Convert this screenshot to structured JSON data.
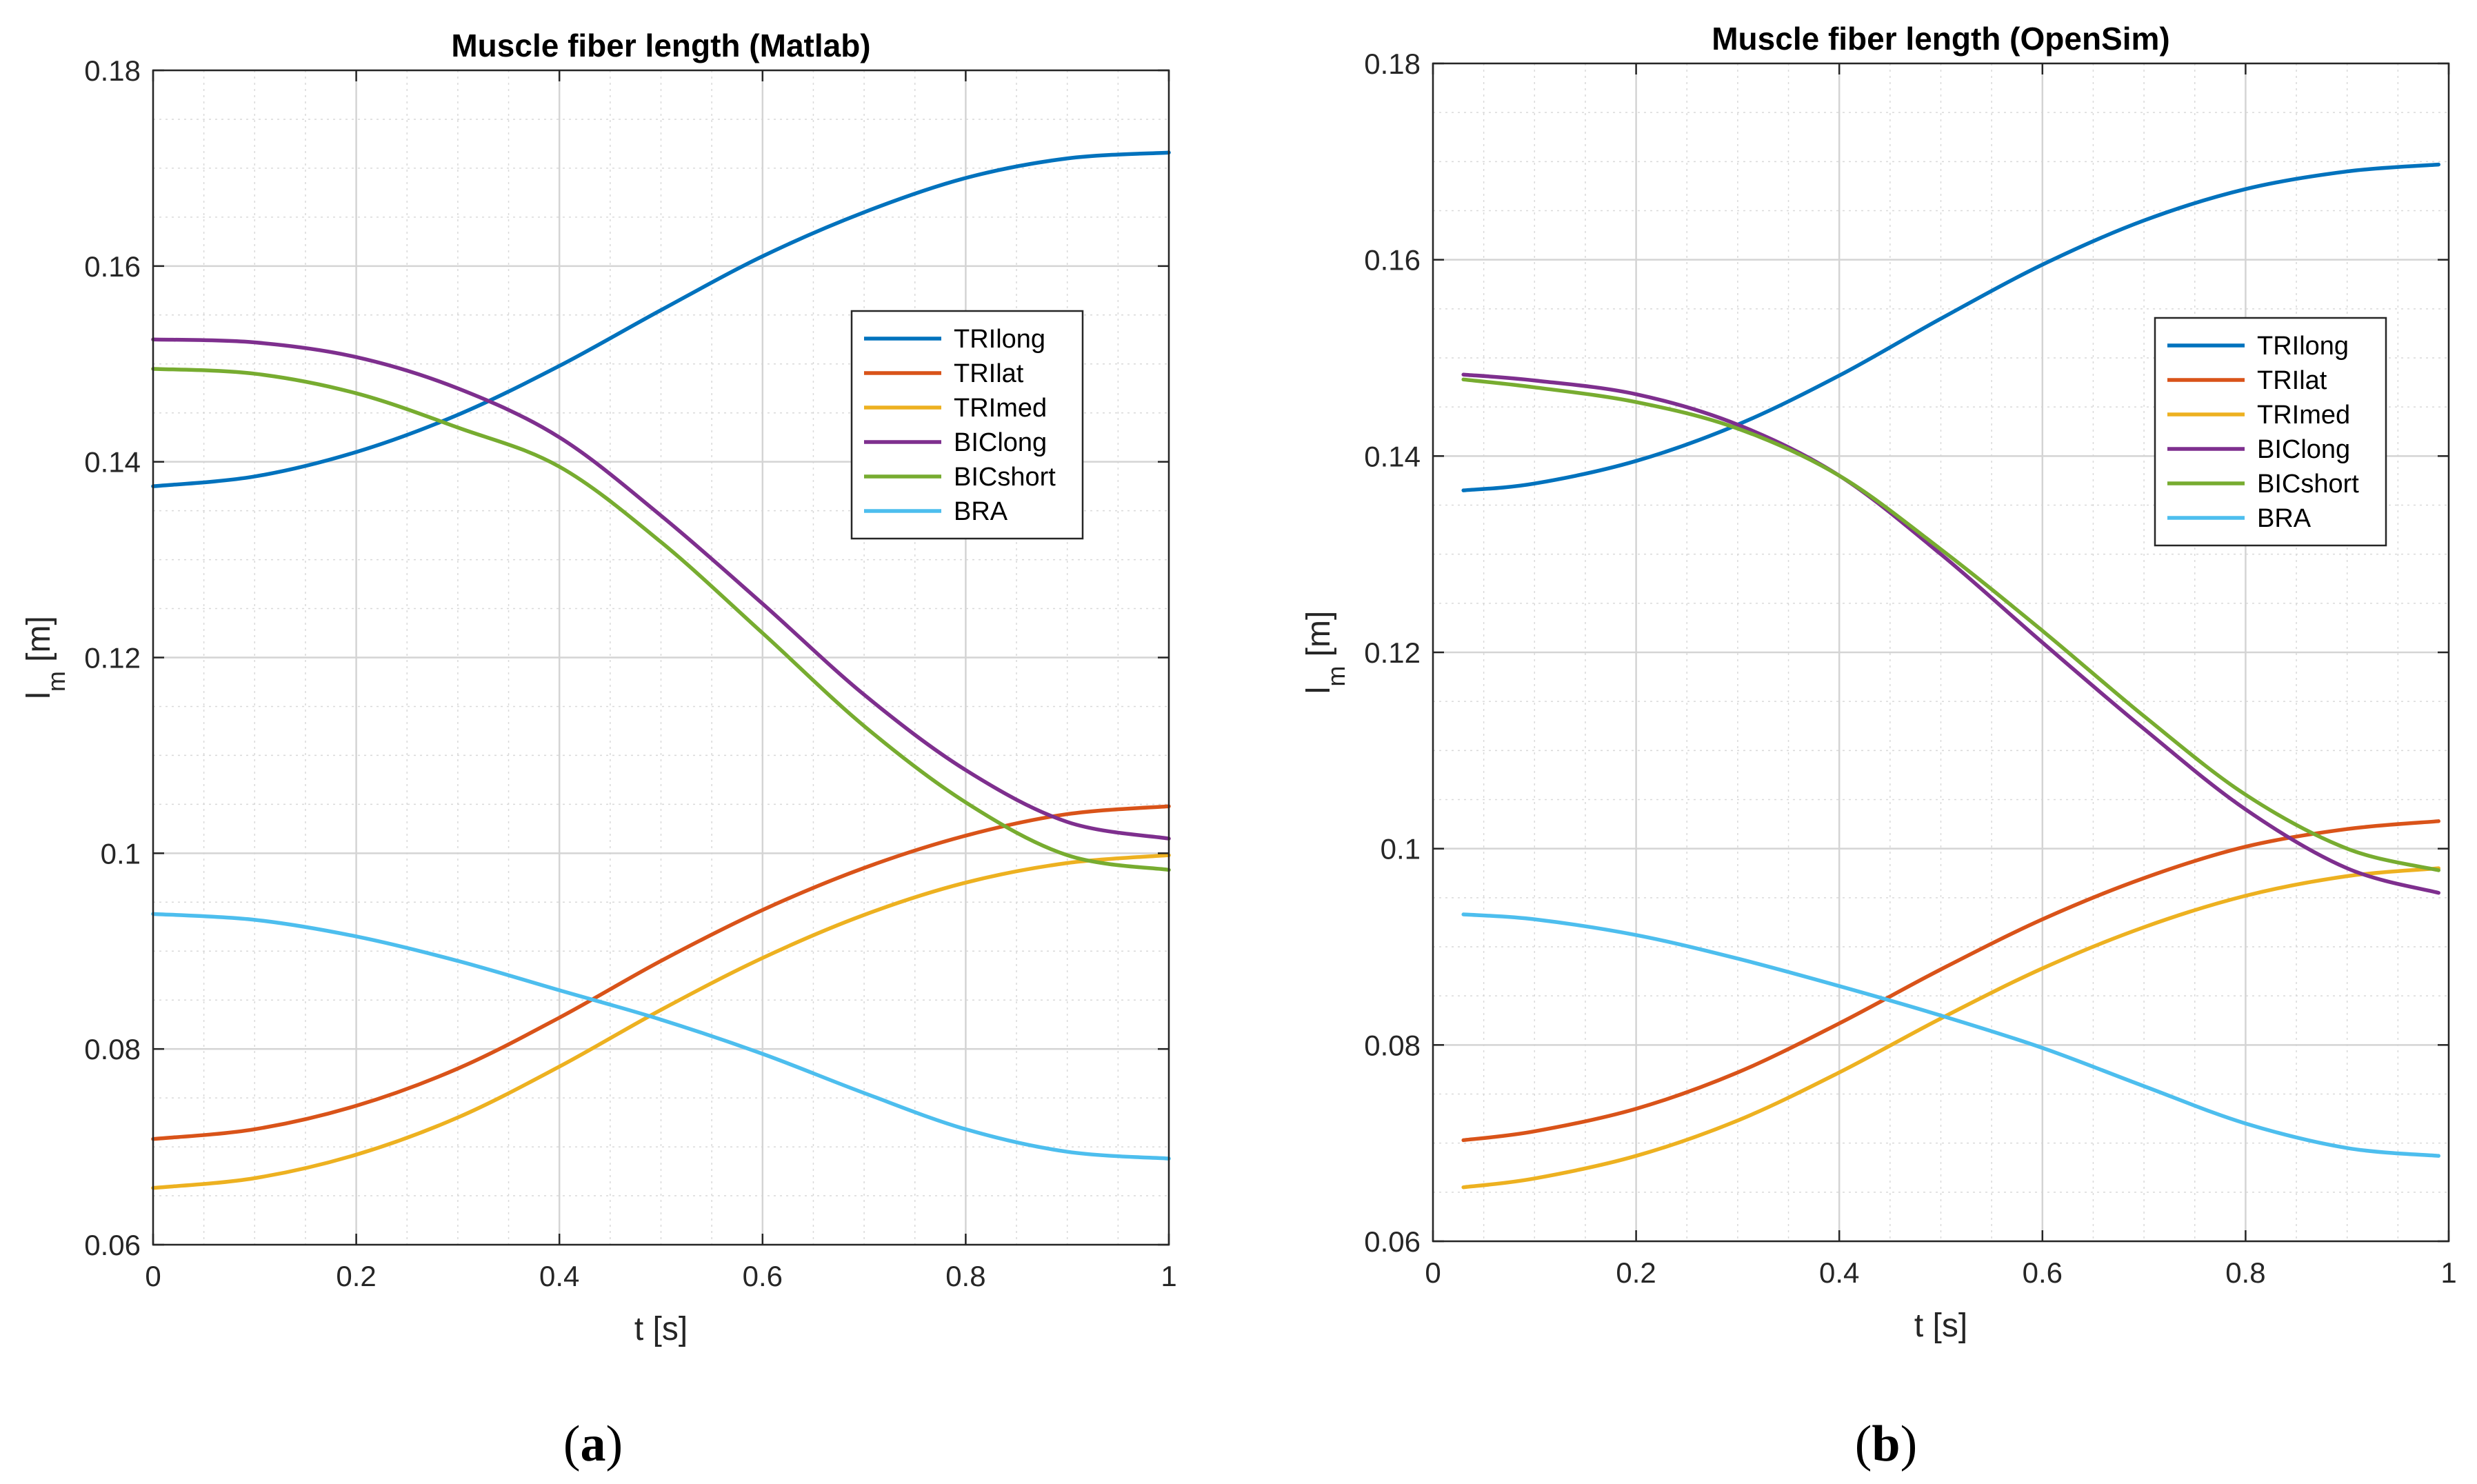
{
  "chart_data": [
    {
      "type": "line",
      "title": "Muscle fiber length (Matlab)",
      "xlabel": "t [s]",
      "ylabel_main": "l",
      "ylabel_sub": "m",
      "ylabel_unit": " [m]",
      "caption_open": "(",
      "caption_letter": "a",
      "caption_close": ")",
      "xlim": [
        0,
        1
      ],
      "ylim": [
        0.06,
        0.18
      ],
      "xticks": [
        0,
        0.2,
        0.4,
        0.6,
        0.8,
        1
      ],
      "xtick_labels": [
        "0",
        "0.2",
        "0.4",
        "0.6",
        "0.8",
        "1"
      ],
      "yticks": [
        0.06,
        0.08,
        0.1,
        0.12,
        0.14,
        0.16,
        0.18
      ],
      "ytick_labels": [
        "0.06",
        "0.08",
        "0.1",
        "0.12",
        "0.14",
        "0.16",
        "0.18"
      ],
      "grid": true,
      "legend_position": "upper-right",
      "series": [
        {
          "name": "TRIlong",
          "color": "#0072BD",
          "x": [
            0,
            0.1,
            0.2,
            0.3,
            0.4,
            0.5,
            0.6,
            0.7,
            0.8,
            0.9,
            1.0
          ],
          "values": [
            0.1375,
            0.1385,
            0.141,
            0.1448,
            0.1498,
            0.1555,
            0.161,
            0.1655,
            0.169,
            0.171,
            0.1716
          ]
        },
        {
          "name": "TRIlat",
          "color": "#D95319",
          "x": [
            0,
            0.1,
            0.2,
            0.3,
            0.4,
            0.5,
            0.6,
            0.7,
            0.8,
            0.9,
            1.0
          ],
          "values": [
            0.0708,
            0.0718,
            0.0742,
            0.078,
            0.0832,
            0.089,
            0.0942,
            0.0985,
            0.1018,
            0.104,
            0.1048
          ]
        },
        {
          "name": "TRImed",
          "color": "#EDB120",
          "x": [
            0,
            0.1,
            0.2,
            0.3,
            0.4,
            0.5,
            0.6,
            0.7,
            0.8,
            0.9,
            1.0
          ],
          "values": [
            0.0658,
            0.0668,
            0.0692,
            0.073,
            0.0782,
            0.084,
            0.0893,
            0.0937,
            0.097,
            0.099,
            0.0998
          ]
        },
        {
          "name": "BIClong",
          "color": "#7E2F8E",
          "x": [
            0,
            0.1,
            0.2,
            0.3,
            0.4,
            0.5,
            0.6,
            0.7,
            0.8,
            0.9,
            1.0
          ],
          "values": [
            0.1525,
            0.1522,
            0.1507,
            0.1475,
            0.1425,
            0.1345,
            0.1255,
            0.1162,
            0.1085,
            0.1032,
            0.1015
          ]
        },
        {
          "name": "BICshort",
          "color": "#77AC30",
          "x": [
            0,
            0.1,
            0.2,
            0.3,
            0.4,
            0.5,
            0.6,
            0.7,
            0.8,
            0.9,
            1.0
          ],
          "values": [
            0.1495,
            0.149,
            0.147,
            0.1435,
            0.1395,
            0.1318,
            0.1225,
            0.113,
            0.1052,
            0.0998,
            0.0983
          ]
        },
        {
          "name": "BRA",
          "color": "#4DBEEE",
          "x": [
            0,
            0.1,
            0.2,
            0.3,
            0.4,
            0.5,
            0.6,
            0.7,
            0.8,
            0.9,
            1.0
          ],
          "values": [
            0.0938,
            0.0932,
            0.0915,
            0.089,
            0.086,
            0.083,
            0.0795,
            0.0755,
            0.0718,
            0.0695,
            0.0688
          ]
        }
      ]
    },
    {
      "type": "line",
      "title": "Muscle fiber length (OpenSim)",
      "xlabel": "t [s]",
      "ylabel_main": "l",
      "ylabel_sub": "m",
      "ylabel_unit": " [m]",
      "caption_open": "(",
      "caption_letter": "b",
      "caption_close": ")",
      "xlim": [
        0,
        1
      ],
      "ylim": [
        0.06,
        0.18
      ],
      "xticks": [
        0,
        0.2,
        0.4,
        0.6,
        0.8,
        1
      ],
      "xtick_labels": [
        "0",
        "0.2",
        "0.4",
        "0.6",
        "0.8",
        "1"
      ],
      "yticks": [
        0.06,
        0.08,
        0.1,
        0.12,
        0.14,
        0.16,
        0.18
      ],
      "ytick_labels": [
        "0.06",
        "0.08",
        "0.1",
        "0.12",
        "0.14",
        "0.16",
        "0.18"
      ],
      "grid": true,
      "legend_position": "upper-right",
      "series": [
        {
          "name": "TRIlong",
          "color": "#0072BD",
          "x": [
            0.03,
            0.1,
            0.2,
            0.3,
            0.4,
            0.5,
            0.6,
            0.7,
            0.8,
            0.9,
            0.99
          ],
          "values": [
            0.1365,
            0.1372,
            0.1395,
            0.1432,
            0.1482,
            0.154,
            0.1595,
            0.164,
            0.1672,
            0.169,
            0.1697
          ]
        },
        {
          "name": "TRIlat",
          "color": "#D95319",
          "x": [
            0.03,
            0.1,
            0.2,
            0.3,
            0.4,
            0.5,
            0.6,
            0.7,
            0.8,
            0.9,
            0.99
          ],
          "values": [
            0.0703,
            0.0712,
            0.0735,
            0.0772,
            0.0822,
            0.0877,
            0.0928,
            0.097,
            0.1002,
            0.102,
            0.1028
          ]
        },
        {
          "name": "TRImed",
          "color": "#EDB120",
          "x": [
            0.03,
            0.1,
            0.2,
            0.3,
            0.4,
            0.5,
            0.6,
            0.7,
            0.8,
            0.9,
            0.99
          ],
          "values": [
            0.0655,
            0.0664,
            0.0687,
            0.0723,
            0.0772,
            0.0827,
            0.0878,
            0.092,
            0.0952,
            0.0972,
            0.098
          ]
        },
        {
          "name": "BIClong",
          "color": "#7E2F8E",
          "x": [
            0.03,
            0.1,
            0.2,
            0.3,
            0.4,
            0.5,
            0.6,
            0.7,
            0.8,
            0.9,
            0.99
          ],
          "values": [
            0.1483,
            0.1477,
            0.1463,
            0.1432,
            0.138,
            0.13,
            0.121,
            0.1122,
            0.104,
            0.098,
            0.0955
          ]
        },
        {
          "name": "BICshort",
          "color": "#77AC30",
          "x": [
            0.03,
            0.1,
            0.2,
            0.3,
            0.4,
            0.5,
            0.6,
            0.7,
            0.8,
            0.9,
            0.99
          ],
          "values": [
            0.1478,
            0.147,
            0.1455,
            0.1428,
            0.138,
            0.1305,
            0.1222,
            0.1135,
            0.1055,
            0.1,
            0.0978
          ]
        },
        {
          "name": "BRA",
          "color": "#4DBEEE",
          "x": [
            0.03,
            0.1,
            0.2,
            0.3,
            0.4,
            0.5,
            0.6,
            0.7,
            0.8,
            0.9,
            0.99
          ],
          "values": [
            0.0933,
            0.0928,
            0.0912,
            0.0888,
            0.086,
            0.083,
            0.0797,
            0.0758,
            0.072,
            0.0695,
            0.0687
          ]
        }
      ]
    }
  ]
}
